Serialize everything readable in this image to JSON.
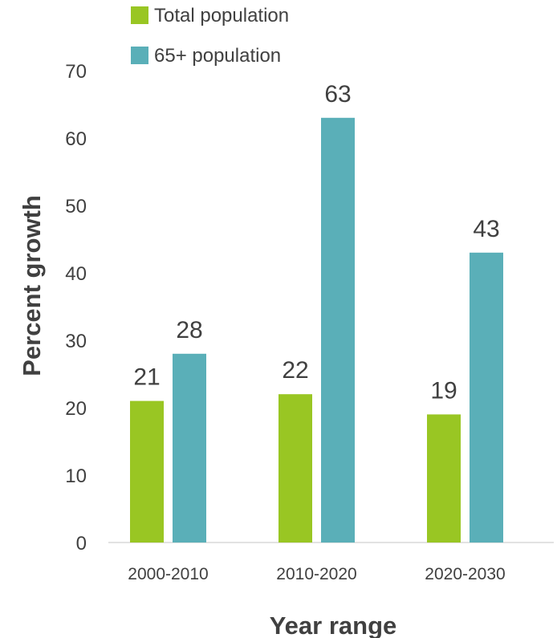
{
  "chart_data": {
    "type": "bar",
    "title": "",
    "xlabel": "Year range",
    "ylabel": "Percent growth",
    "categories": [
      "2000-2010",
      "2010-2020",
      "2020-2030"
    ],
    "series": [
      {
        "name": "Total population",
        "values": [
          21,
          22,
          19
        ],
        "color": "#99c623"
      },
      {
        "name": "65+ population",
        "values": [
          28,
          63,
          43
        ],
        "color": "#5aafb8"
      }
    ],
    "ylim": [
      0,
      70
    ],
    "yticks": [
      0,
      10,
      20,
      30,
      40,
      50,
      60,
      70
    ],
    "grid": false,
    "legend": "top-left",
    "data_labels": true
  }
}
